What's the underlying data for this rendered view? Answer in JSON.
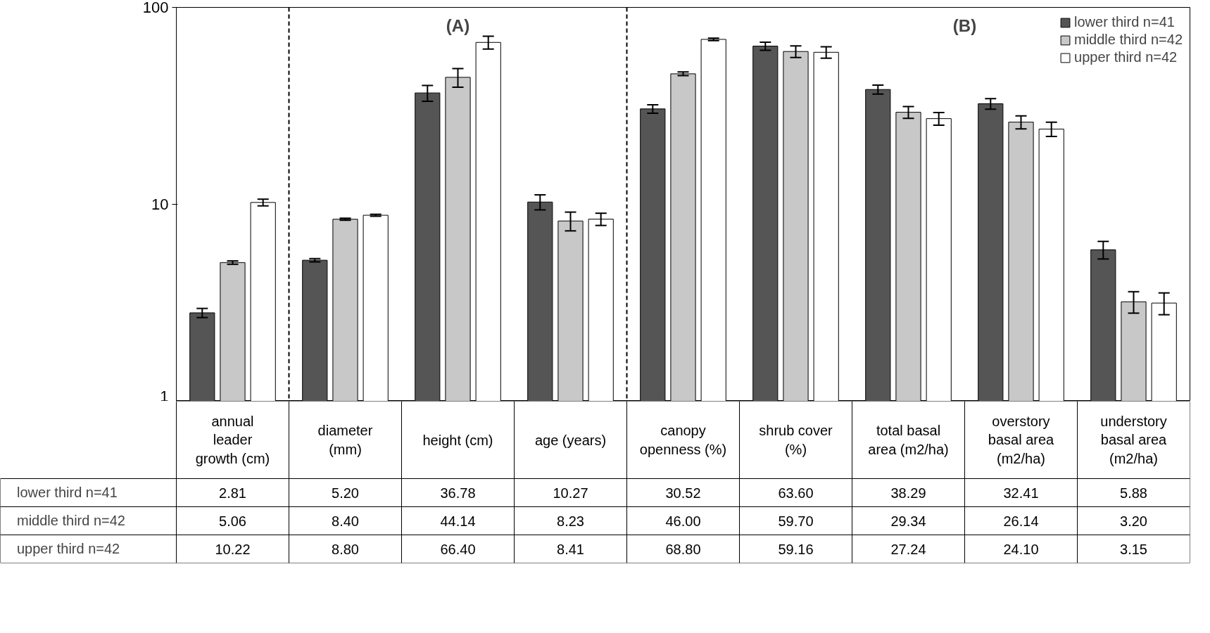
{
  "chart_data": {
    "type": "bar",
    "log": true,
    "ylim": [
      1,
      100
    ],
    "yticks": [
      1,
      10,
      100
    ],
    "grid": false,
    "legend": "top right",
    "categories": [
      "annual leader growth (cm)",
      "diameter (mm)",
      "height (cm)",
      "age (years)",
      "canopy openness (%)",
      "shrub cover (%)",
      "total basal area (m2/ha)",
      "overstory basal area (m2/ha)",
      "understory basal area (m2/ha)"
    ],
    "annotations": [
      "(A)",
      "(B)"
    ],
    "series": [
      {
        "name": "lower third n=41",
        "color": "#555555",
        "values": [
          2.81,
          5.2,
          36.78,
          10.27,
          30.52,
          63.6,
          38.29,
          32.41,
          5.88
        ],
        "value_labels": [
          "2.81",
          "5.20",
          "36.78",
          "10.27",
          "30.52",
          "63.60",
          "38.29",
          "32.41",
          "5.88"
        ],
        "errors": [
          0.15,
          0.1,
          3.4,
          0.9,
          1.5,
          3,
          2,
          2,
          0.6
        ]
      },
      {
        "name": "middle third n=42",
        "color": "#c8c8c8",
        "values": [
          5.06,
          8.4,
          44.14,
          8.23,
          46.0,
          59.7,
          29.34,
          26.14,
          3.2
        ],
        "value_labels": [
          "5.06",
          "8.40",
          "44.14",
          "8.23",
          "46.00",
          "59.70",
          "29.34",
          "26.14",
          "3.20"
        ],
        "errors": [
          0.1,
          0.1,
          4.8,
          0.9,
          1,
          4,
          2,
          2,
          0.4
        ]
      },
      {
        "name": "upper third n=42",
        "color": "#ffffff",
        "values": [
          10.22,
          8.8,
          66.4,
          8.41,
          68.8,
          59.16,
          27.24,
          24.1,
          3.15
        ],
        "value_labels": [
          "10.22",
          "8.80",
          "66.40",
          "8.41",
          "68.80",
          "59.16",
          "27.24",
          "24.10",
          "3.15"
        ],
        "errors": [
          0.4,
          0.1,
          5,
          0.6,
          1,
          4,
          2,
          2,
          0.4
        ]
      }
    ]
  }
}
